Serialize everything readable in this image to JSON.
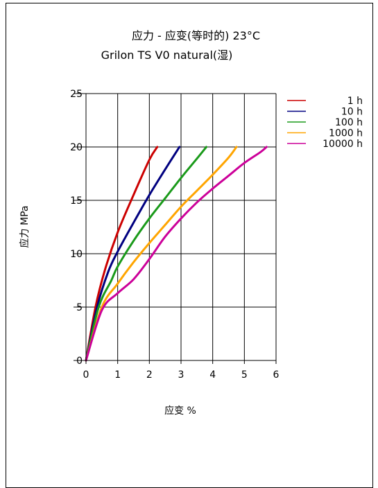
{
  "chart_data": {
    "type": "line",
    "title": "应力 - 应变(等时的) 23°C",
    "subtitle": "Grilon TS V0 natural(湿)",
    "xlabel": "应变 %",
    "ylabel": "应力 MPa",
    "xlim": [
      0,
      6
    ],
    "ylim": [
      0,
      25
    ],
    "xticks": [
      "0",
      "1",
      "2",
      "3",
      "4",
      "5",
      "6"
    ],
    "yticks": [
      "0",
      "5",
      "10",
      "15",
      "20",
      "25"
    ],
    "grid": true,
    "legend_position": "top-right",
    "series": [
      {
        "name": "1 h",
        "color": "#cc0000",
        "x": [
          0,
          0.3,
          0.6,
          1.0,
          1.5,
          2.0,
          2.25
        ],
        "y": [
          0,
          5,
          8.5,
          12,
          15.5,
          18.8,
          20
        ]
      },
      {
        "name": "10 h",
        "color": "#000080",
        "x": [
          0,
          0.35,
          0.7,
          1.0,
          1.5,
          2.0,
          2.5,
          2.95
        ],
        "y": [
          0,
          5,
          8.3,
          10.2,
          12.9,
          15.5,
          17.9,
          20
        ]
      },
      {
        "name": "100 h",
        "color": "#1a9a1a",
        "x": [
          0,
          0.4,
          0.8,
          1.0,
          1.5,
          2.0,
          2.5,
          3.0,
          3.5,
          3.8
        ],
        "y": [
          0,
          5,
          7.5,
          8.8,
          11.2,
          13.3,
          15.2,
          17.1,
          18.9,
          20
        ]
      },
      {
        "name": "1000 h",
        "color": "#ffa500",
        "x": [
          0,
          0.5,
          1.0,
          1.5,
          2.0,
          2.5,
          3.0,
          3.5,
          4.0,
          4.5,
          4.75
        ],
        "y": [
          0,
          5,
          7.2,
          9.2,
          11.0,
          12.7,
          14.4,
          15.9,
          17.4,
          19.0,
          20
        ]
      },
      {
        "name": "10000 h",
        "color": "#cc0099",
        "x": [
          0,
          0.5,
          1.0,
          1.5,
          2.0,
          2.5,
          3.0,
          3.5,
          4.0,
          4.5,
          5.0,
          5.5,
          5.7
        ],
        "y": [
          0,
          4.7,
          6.3,
          7.6,
          9.5,
          11.6,
          13.3,
          14.8,
          16.1,
          17.3,
          18.5,
          19.5,
          20
        ]
      }
    ]
  }
}
